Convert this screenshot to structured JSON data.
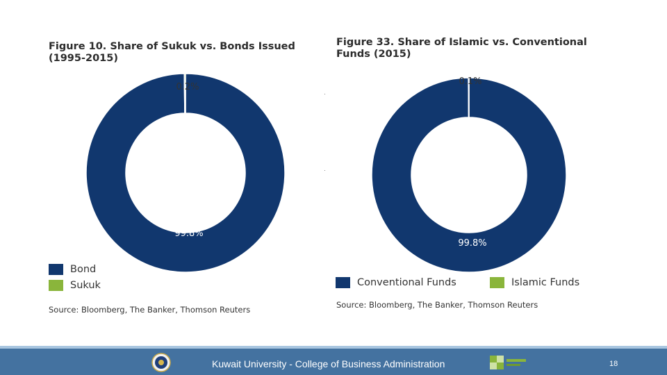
{
  "chart_data": [
    {
      "type": "pie",
      "donut": true,
      "title": "Figure 10. Share of Sukuk vs. Bonds Issued (1995-2015)",
      "categories": [
        "Bond",
        "Sukuk"
      ],
      "values": [
        99.8,
        0.2
      ],
      "value_labels": [
        "99.8%",
        "0.2%"
      ],
      "colors": [
        "#11376e",
        "#8ab53b"
      ],
      "legend_position": "bottom-left, vertical",
      "source": "Source: Bloomberg, The Banker, Thomson Reuters"
    },
    {
      "type": "pie",
      "donut": true,
      "title": "Figure 33. Share of Islamic vs. Conventional Funds (2015)",
      "categories": [
        "Conventional Funds",
        "Islamic Funds"
      ],
      "values": [
        99.8,
        0.1
      ],
      "value_labels": [
        "99.8%",
        "0.1%"
      ],
      "colors": [
        "#11376e",
        "#8ab53b"
      ],
      "legend_position": "bottom, horizontal",
      "source": "Source: Bloomberg, The Banker, Thomson Reuters"
    }
  ],
  "footer": {
    "text": "Kuwait University - College of Business Administration",
    "page_number": "18",
    "background_color": "#4472a0",
    "left_logo_icon": "university-seal-icon",
    "right_logo_icon": "green-square-logo-icon"
  }
}
